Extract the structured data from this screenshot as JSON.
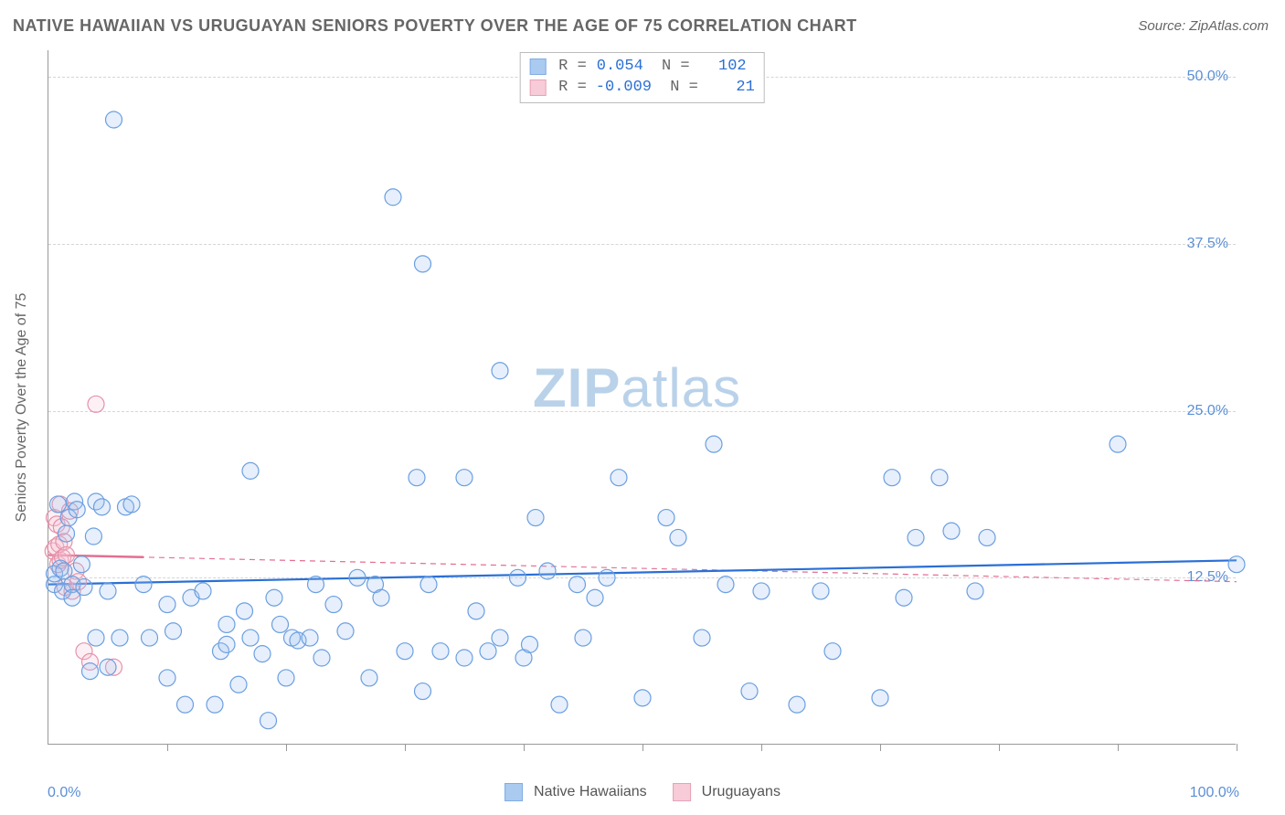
{
  "title": "NATIVE HAWAIIAN VS URUGUAYAN SENIORS POVERTY OVER THE AGE OF 75 CORRELATION CHART",
  "title_color": "#666666",
  "source_prefix": "Source: ",
  "source_name": "ZipAtlas.com",
  "source_color": "#666666",
  "watermark": {
    "text_bold": "ZIP",
    "text_light": "atlas",
    "color": "#b9d2ea"
  },
  "chart": {
    "type": "scatter",
    "background_color": "#ffffff",
    "xlim": [
      0,
      100
    ],
    "ylim": [
      0,
      52
    ],
    "xticks": [
      10,
      20,
      30,
      40,
      50,
      60,
      70,
      80,
      90,
      100
    ],
    "y_gridlines": [
      {
        "value": 12.5,
        "label": "12.5%"
      },
      {
        "value": 25.0,
        "label": "25.0%"
      },
      {
        "value": 37.5,
        "label": "37.5%"
      },
      {
        "value": 50.0,
        "label": "50.0%"
      }
    ],
    "grid_color": "#d5d5d5",
    "axis_color": "#999999",
    "y_axis_title": "Seniors Poverty Over the Age of 75",
    "y_axis_title_color": "#666666",
    "x_min_label": "0.0%",
    "x_max_label": "100.0%",
    "tick_label_color": "#5a8fd6",
    "marker_radius": 9,
    "marker_stroke_width": 1.2,
    "marker_fill_opacity": 0.25,
    "series": [
      {
        "id": "native_hawaiians",
        "label": "Native Hawaiians",
        "color_stroke": "#6b9fe0",
        "color_fill": "#9cc1ee",
        "R": "0.054",
        "N": "102",
        "regression": {
          "x1": 0,
          "y1": 12.0,
          "x2": 100,
          "y2": 13.8,
          "stroke": "#2a6fd6",
          "width": 2.2,
          "dash": ""
        },
        "points": [
          [
            0.5,
            12.0
          ],
          [
            0.5,
            12.8
          ],
          [
            0.8,
            18.0
          ],
          [
            1.0,
            13.2
          ],
          [
            1.2,
            11.5
          ],
          [
            1.3,
            13.0
          ],
          [
            1.5,
            15.8
          ],
          [
            1.7,
            17.0
          ],
          [
            2.0,
            12.0
          ],
          [
            2.0,
            11.0
          ],
          [
            2.2,
            18.2
          ],
          [
            2.4,
            17.6
          ],
          [
            2.8,
            13.5
          ],
          [
            3.0,
            11.8
          ],
          [
            3.5,
            5.5
          ],
          [
            3.8,
            15.6
          ],
          [
            4.0,
            18.2
          ],
          [
            4.0,
            8.0
          ],
          [
            4.5,
            17.8
          ],
          [
            5.0,
            11.5
          ],
          [
            5.0,
            5.8
          ],
          [
            5.5,
            46.8
          ],
          [
            6.0,
            8.0
          ],
          [
            6.5,
            17.8
          ],
          [
            7.0,
            18.0
          ],
          [
            8.0,
            12.0
          ],
          [
            8.5,
            8.0
          ],
          [
            10.0,
            5.0
          ],
          [
            10.0,
            10.5
          ],
          [
            10.5,
            8.5
          ],
          [
            11.5,
            3.0
          ],
          [
            12.0,
            11.0
          ],
          [
            13.0,
            11.5
          ],
          [
            14.0,
            3.0
          ],
          [
            14.5,
            7.0
          ],
          [
            15.0,
            7.5
          ],
          [
            15.0,
            9.0
          ],
          [
            16.0,
            4.5
          ],
          [
            16.5,
            10.0
          ],
          [
            17.0,
            8.0
          ],
          [
            17.0,
            20.5
          ],
          [
            18.0,
            6.8
          ],
          [
            18.5,
            1.8
          ],
          [
            19.0,
            11.0
          ],
          [
            19.5,
            9.0
          ],
          [
            20.0,
            5.0
          ],
          [
            20.5,
            8.0
          ],
          [
            21.0,
            7.8
          ],
          [
            22.0,
            8.0
          ],
          [
            22.5,
            12.0
          ],
          [
            23.0,
            6.5
          ],
          [
            24.0,
            10.5
          ],
          [
            25.0,
            8.5
          ],
          [
            26.0,
            12.5
          ],
          [
            27.0,
            5.0
          ],
          [
            27.5,
            12.0
          ],
          [
            28.0,
            11.0
          ],
          [
            29.0,
            41.0
          ],
          [
            30.0,
            7.0
          ],
          [
            31.0,
            20.0
          ],
          [
            31.5,
            4.0
          ],
          [
            31.5,
            36.0
          ],
          [
            32.0,
            12.0
          ],
          [
            33.0,
            7.0
          ],
          [
            35.0,
            20.0
          ],
          [
            35.0,
            6.5
          ],
          [
            36.0,
            10.0
          ],
          [
            37.0,
            7.0
          ],
          [
            38.0,
            8.0
          ],
          [
            38.0,
            28.0
          ],
          [
            39.5,
            12.5
          ],
          [
            40.0,
            6.5
          ],
          [
            40.5,
            7.5
          ],
          [
            41.0,
            17.0
          ],
          [
            42.0,
            13.0
          ],
          [
            43.0,
            3.0
          ],
          [
            44.5,
            12.0
          ],
          [
            45.0,
            8.0
          ],
          [
            46.0,
            11.0
          ],
          [
            47.0,
            12.5
          ],
          [
            48.0,
            20.0
          ],
          [
            50.0,
            3.5
          ],
          [
            52.0,
            17.0
          ],
          [
            53.0,
            15.5
          ],
          [
            55.0,
            8.0
          ],
          [
            56.0,
            22.5
          ],
          [
            57.0,
            12.0
          ],
          [
            59.0,
            4.0
          ],
          [
            60.0,
            11.5
          ],
          [
            63.0,
            3.0
          ],
          [
            65.0,
            11.5
          ],
          [
            66.0,
            7.0
          ],
          [
            70.0,
            3.5
          ],
          [
            71.0,
            20.0
          ],
          [
            72.0,
            11.0
          ],
          [
            73.0,
            15.5
          ],
          [
            75.0,
            20.0
          ],
          [
            76.0,
            16.0
          ],
          [
            78.0,
            11.5
          ],
          [
            79.0,
            15.5
          ],
          [
            90.0,
            22.5
          ],
          [
            100.0,
            13.5
          ]
        ]
      },
      {
        "id": "uruguayans",
        "label": "Uruguayans",
        "color_stroke": "#e592aa",
        "color_fill": "#f6c3d2",
        "R": "-0.009",
        "N": "21",
        "regression": {
          "x1": 0,
          "y1": 14.2,
          "x2": 100,
          "y2": 12.2,
          "stroke": "#e36f92",
          "width": 1.2,
          "dash": "6 5"
        },
        "regression_solid_end_x": 8,
        "points": [
          [
            0.4,
            14.5
          ],
          [
            0.5,
            17.0
          ],
          [
            0.6,
            14.8
          ],
          [
            0.7,
            16.5
          ],
          [
            0.8,
            13.5
          ],
          [
            0.9,
            15.0
          ],
          [
            1.0,
            18.0
          ],
          [
            1.0,
            13.8
          ],
          [
            1.1,
            16.3
          ],
          [
            1.2,
            14.0
          ],
          [
            1.3,
            15.2
          ],
          [
            1.4,
            11.8
          ],
          [
            1.5,
            14.2
          ],
          [
            1.8,
            17.5
          ],
          [
            2.0,
            11.5
          ],
          [
            2.3,
            13.0
          ],
          [
            2.5,
            12.2
          ],
          [
            3.0,
            7.0
          ],
          [
            3.5,
            6.2
          ],
          [
            4.0,
            25.5
          ],
          [
            5.5,
            5.8
          ]
        ]
      }
    ],
    "stats_legend": {
      "label_color": "#666666",
      "value_color": "#2a6fd6"
    },
    "bottom_legend": {
      "text_color": "#555555"
    }
  }
}
